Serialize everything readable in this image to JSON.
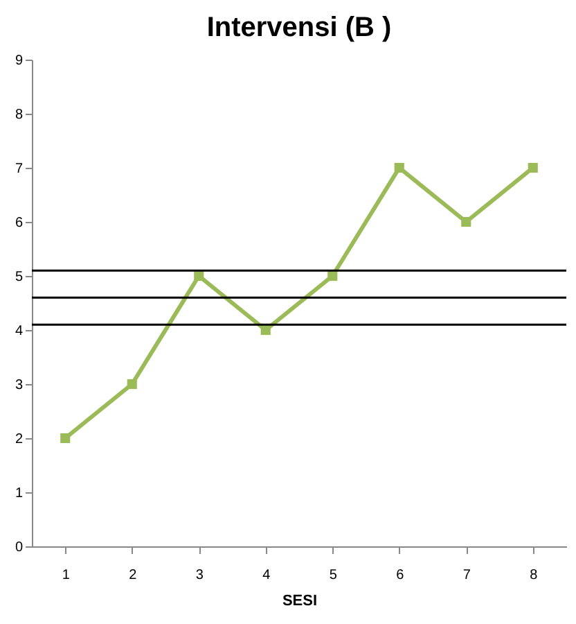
{
  "chart_data": {
    "type": "line",
    "title": "Intervensi (B )",
    "xlabel": "SESI",
    "categories": [
      "1",
      "2",
      "3",
      "4",
      "5",
      "6",
      "7",
      "8"
    ],
    "series": [
      {
        "color": "#9bbb59",
        "values": [
          2,
          3,
          5,
          4,
          5,
          7,
          6,
          7
        ]
      }
    ],
    "ylim": [
      0,
      9
    ],
    "yticks": [
      0,
      1,
      2,
      3,
      4,
      5,
      6,
      7,
      8,
      9
    ],
    "grid": false,
    "marker": "square",
    "line_style": "solid",
    "ref_lines": [
      {
        "axis": "y",
        "value": 5.1,
        "color": "#000000"
      },
      {
        "axis": "y",
        "value": 4.6,
        "color": "#000000"
      },
      {
        "axis": "y",
        "value": 4.1,
        "color": "#000000"
      }
    ]
  }
}
